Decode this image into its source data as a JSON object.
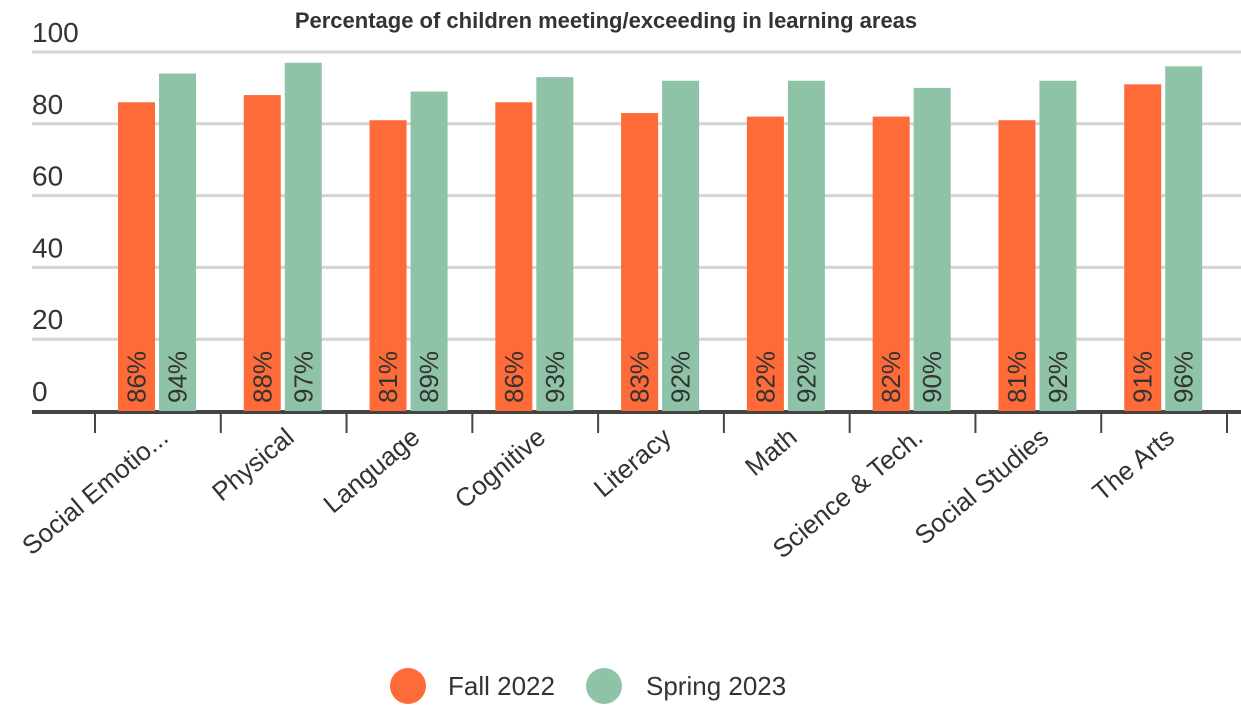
{
  "chart_data": {
    "type": "bar",
    "title": "Percentage of children meeting/exceeding in learning areas",
    "categories": [
      "Social Emotio...",
      "Physical",
      "Language",
      "Cognitive",
      "Literacy",
      "Math",
      "Science & Tech.",
      "Social Studies",
      "The Arts"
    ],
    "series": [
      {
        "name": "Fall 2022",
        "color": "#fe6b38",
        "values": [
          86,
          88,
          81,
          86,
          83,
          82,
          82,
          81,
          91
        ],
        "value_labels": [
          "86%",
          "88%",
          "81%",
          "86%",
          "83%",
          "82%",
          "82%",
          "81%",
          "91%"
        ]
      },
      {
        "name": "Spring 2023",
        "color": "#8fc3a7",
        "values": [
          94,
          97,
          89,
          93,
          92,
          92,
          90,
          92,
          96
        ],
        "value_labels": [
          "94%",
          "97%",
          "89%",
          "93%",
          "92%",
          "92%",
          "90%",
          "92%",
          "96%"
        ]
      }
    ],
    "ylim": [
      0,
      100
    ],
    "yticks": [
      0,
      20,
      40,
      60,
      80,
      100
    ],
    "grid": true,
    "legend": "bottom"
  }
}
